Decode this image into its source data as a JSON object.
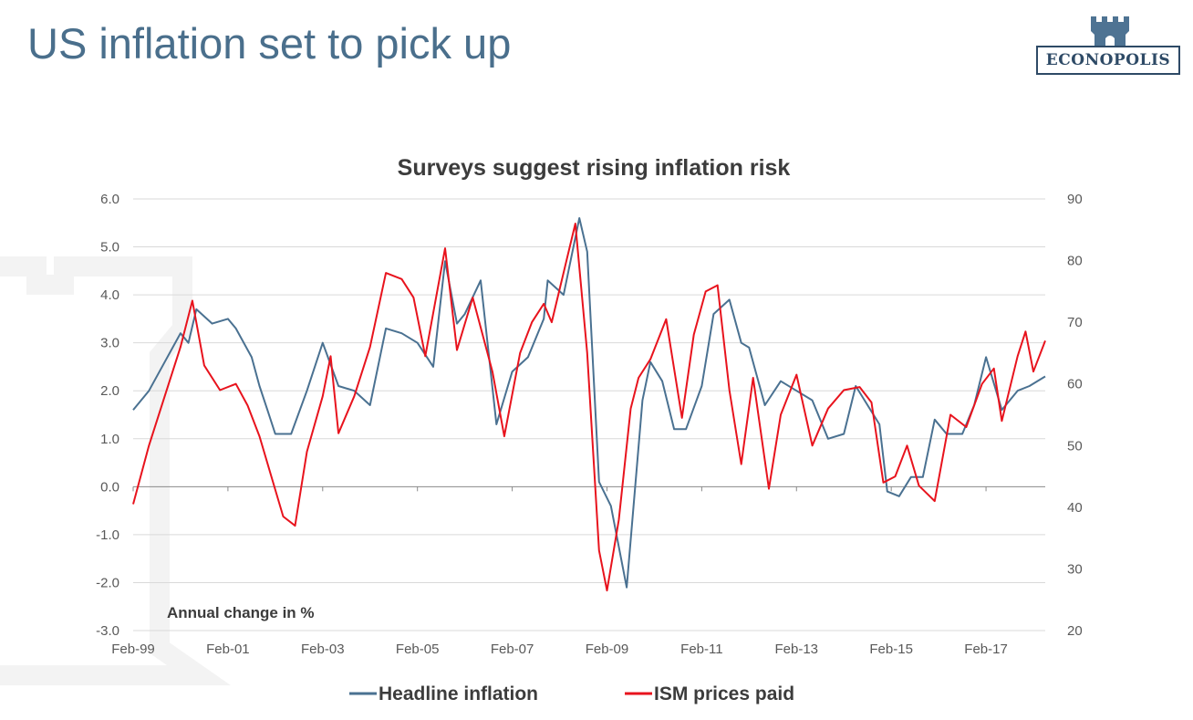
{
  "slide": {
    "title": "US inflation set to pick up",
    "logo_text": "ECONOPOLIS",
    "logo_icon": "castle-tower-icon",
    "colors": {
      "title": "#4a6f8c",
      "logo": "#4e7393"
    }
  },
  "chart_data": {
    "type": "line",
    "title": "Surveys suggest rising inflation risk",
    "annotation": "Annual change in %",
    "x_range": [
      "1999-02",
      "2018-05"
    ],
    "x_ticks": [
      "Feb-99",
      "Feb-01",
      "Feb-03",
      "Feb-05",
      "Feb-07",
      "Feb-09",
      "Feb-11",
      "Feb-13",
      "Feb-15",
      "Feb-17"
    ],
    "y_left": {
      "min": -3.0,
      "max": 6.0,
      "ticks": [
        "-3.0",
        "-2.0",
        "-1.0",
        "0.0",
        "1.0",
        "2.0",
        "3.0",
        "4.0",
        "5.0",
        "6.0"
      ]
    },
    "y_right": {
      "min": 20,
      "max": 90,
      "ticks": [
        "20",
        "30",
        "40",
        "50",
        "60",
        "70",
        "80",
        "90"
      ]
    },
    "grid": true,
    "legend_position": "bottom-center",
    "series": [
      {
        "name": "Headline inflation",
        "axis": "left",
        "color": "#4a7191",
        "points": [
          [
            "1999-02",
            1.6
          ],
          [
            "1999-06",
            2.0
          ],
          [
            "1999-10",
            2.6
          ],
          [
            "2000-02",
            3.2
          ],
          [
            "2000-04",
            3.0
          ],
          [
            "2000-06",
            3.7
          ],
          [
            "2000-10",
            3.4
          ],
          [
            "2001-02",
            3.5
          ],
          [
            "2001-04",
            3.3
          ],
          [
            "2001-08",
            2.7
          ],
          [
            "2001-10",
            2.1
          ],
          [
            "2001-12",
            1.6
          ],
          [
            "2002-02",
            1.1
          ],
          [
            "2002-06",
            1.1
          ],
          [
            "2002-10",
            2.0
          ],
          [
            "2003-02",
            3.0
          ],
          [
            "2003-06",
            2.1
          ],
          [
            "2003-10",
            2.0
          ],
          [
            "2004-02",
            1.7
          ],
          [
            "2004-06",
            3.3
          ],
          [
            "2004-10",
            3.2
          ],
          [
            "2005-02",
            3.0
          ],
          [
            "2005-06",
            2.5
          ],
          [
            "2005-09",
            4.7
          ],
          [
            "2005-12",
            3.4
          ],
          [
            "2006-02",
            3.6
          ],
          [
            "2006-06",
            4.3
          ],
          [
            "2006-10",
            1.3
          ],
          [
            "2007-02",
            2.4
          ],
          [
            "2007-06",
            2.7
          ],
          [
            "2007-10",
            3.5
          ],
          [
            "2007-11",
            4.3
          ],
          [
            "2008-03",
            4.0
          ],
          [
            "2008-07",
            5.6
          ],
          [
            "2008-09",
            4.9
          ],
          [
            "2008-12",
            0.1
          ],
          [
            "2009-03",
            -0.4
          ],
          [
            "2009-07",
            -2.1
          ],
          [
            "2009-11",
            1.8
          ],
          [
            "2010-01",
            2.6
          ],
          [
            "2010-04",
            2.2
          ],
          [
            "2010-07",
            1.2
          ],
          [
            "2010-10",
            1.2
          ],
          [
            "2011-02",
            2.1
          ],
          [
            "2011-05",
            3.6
          ],
          [
            "2011-09",
            3.9
          ],
          [
            "2011-12",
            3.0
          ],
          [
            "2012-02",
            2.9
          ],
          [
            "2012-06",
            1.7
          ],
          [
            "2012-10",
            2.2
          ],
          [
            "2013-02",
            2.0
          ],
          [
            "2013-06",
            1.8
          ],
          [
            "2013-10",
            1.0
          ],
          [
            "2014-02",
            1.1
          ],
          [
            "2014-05",
            2.1
          ],
          [
            "2014-08",
            1.7
          ],
          [
            "2014-11",
            1.3
          ],
          [
            "2015-01",
            -0.1
          ],
          [
            "2015-04",
            -0.2
          ],
          [
            "2015-07",
            0.2
          ],
          [
            "2015-10",
            0.2
          ],
          [
            "2016-01",
            1.4
          ],
          [
            "2016-04",
            1.1
          ],
          [
            "2016-08",
            1.1
          ],
          [
            "2016-11",
            1.7
          ],
          [
            "2017-02",
            2.7
          ],
          [
            "2017-06",
            1.6
          ],
          [
            "2017-10",
            2.0
          ],
          [
            "2018-01",
            2.1
          ],
          [
            "2018-05",
            2.3
          ]
        ]
      },
      {
        "name": "ISM prices paid",
        "axis": "right",
        "color": "#e8131d",
        "points": [
          [
            "1999-02",
            40.5
          ],
          [
            "1999-06",
            50.0
          ],
          [
            "1999-10",
            58.0
          ],
          [
            "2000-02",
            66.0
          ],
          [
            "2000-05",
            73.5
          ],
          [
            "2000-08",
            63.0
          ],
          [
            "2000-12",
            59.0
          ],
          [
            "2001-04",
            60.0
          ],
          [
            "2001-07",
            56.5
          ],
          [
            "2001-10",
            51.5
          ],
          [
            "2002-01",
            45.0
          ],
          [
            "2002-04",
            38.5
          ],
          [
            "2002-07",
            37.0
          ],
          [
            "2002-10",
            49.0
          ],
          [
            "2003-02",
            58.0
          ],
          [
            "2003-04",
            64.5
          ],
          [
            "2003-06",
            52.0
          ],
          [
            "2003-10",
            58.0
          ],
          [
            "2004-02",
            66.0
          ],
          [
            "2004-06",
            78.0
          ],
          [
            "2004-10",
            77.0
          ],
          [
            "2005-01",
            74.0
          ],
          [
            "2005-04",
            64.5
          ],
          [
            "2005-09",
            82.0
          ],
          [
            "2005-12",
            65.5
          ],
          [
            "2006-04",
            74.0
          ],
          [
            "2006-09",
            62.0
          ],
          [
            "2006-12",
            51.5
          ],
          [
            "2007-04",
            65.0
          ],
          [
            "2007-07",
            70.0
          ],
          [
            "2007-10",
            73.0
          ],
          [
            "2007-12",
            70.0
          ],
          [
            "2008-06",
            86.0
          ],
          [
            "2008-09",
            65.0
          ],
          [
            "2008-12",
            33.0
          ],
          [
            "2009-02",
            26.5
          ],
          [
            "2009-05",
            38.0
          ],
          [
            "2009-08",
            56.0
          ],
          [
            "2009-10",
            61.0
          ],
          [
            "2010-01",
            64.0
          ],
          [
            "2010-05",
            70.5
          ],
          [
            "2010-09",
            54.5
          ],
          [
            "2010-12",
            68.0
          ],
          [
            "2011-03",
            75.0
          ],
          [
            "2011-06",
            76.0
          ],
          [
            "2011-09",
            59.0
          ],
          [
            "2011-12",
            47.0
          ],
          [
            "2012-03",
            61.0
          ],
          [
            "2012-07",
            43.0
          ],
          [
            "2012-10",
            55.0
          ],
          [
            "2013-02",
            61.5
          ],
          [
            "2013-06",
            50.0
          ],
          [
            "2013-10",
            56.0
          ],
          [
            "2014-02",
            59.0
          ],
          [
            "2014-06",
            59.5
          ],
          [
            "2014-09",
            57.0
          ],
          [
            "2014-12",
            44.0
          ],
          [
            "2015-03",
            45.0
          ],
          [
            "2015-06",
            50.0
          ],
          [
            "2015-09",
            43.5
          ],
          [
            "2016-01",
            41.0
          ],
          [
            "2016-05",
            55.0
          ],
          [
            "2016-09",
            53.0
          ],
          [
            "2017-01",
            60.0
          ],
          [
            "2017-04",
            62.5
          ],
          [
            "2017-06",
            54.0
          ],
          [
            "2017-10",
            64.5
          ],
          [
            "2017-12",
            68.5
          ],
          [
            "2018-02",
            62.0
          ],
          [
            "2018-05",
            67.0
          ]
        ]
      }
    ]
  }
}
